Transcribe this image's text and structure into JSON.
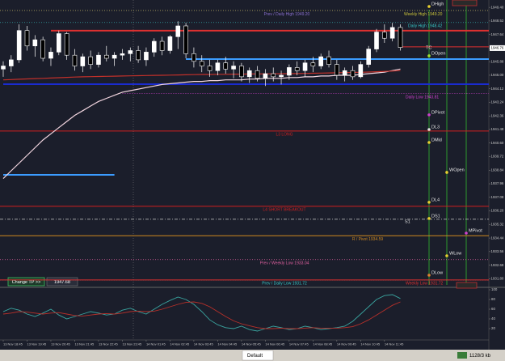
{
  "chart_data": {
    "type": "candlestick",
    "categories": [
      "13 Nov 18:45",
      null,
      null,
      "13 Nov 19:45",
      null,
      null,
      "13 Nov 20:45",
      null,
      null,
      "13 Nov 21:45",
      null,
      null,
      "13 Nov 22:45",
      null,
      null,
      "13 Nov 23:45",
      null,
      null,
      "14 Nov 01:45",
      null,
      null,
      "14 Nov 02:45",
      null,
      null,
      "14 Nov 03:45",
      null,
      null,
      "14 Nov 04:45",
      null,
      null,
      "14 Nov 05:45",
      null,
      null,
      "14 Nov 06:45",
      null,
      null,
      "14 Nov 07:45",
      null,
      null,
      "14 Nov 08:45",
      null,
      null,
      "14 Nov 09:45",
      null,
      null,
      "14 Nov 10:45",
      null,
      null,
      "14 Nov 11:45",
      null,
      null
    ],
    "open": [
      1945.4,
      1945.6,
      1946.0,
      1947.9,
      1946.9,
      1947.3,
      1946.1,
      1946.5,
      1947.7,
      1946.3,
      1945.6,
      1946.2,
      1945.7,
      1946.3,
      1946.1,
      1946.3,
      1946.4,
      1946.6,
      1946.0,
      1946.5,
      1947.2,
      1946.6,
      1947.5,
      1948.2,
      1946.4,
      1945.9,
      1945.6,
      1945.3,
      1945.8,
      1945.4,
      1945.6,
      1944.9,
      1945.3,
      1944.8,
      1945.1,
      1944.9,
      1945.0,
      1945.5,
      1945.3,
      1945.8,
      1945.6,
      1946.2,
      1945.7,
      1945.0,
      1945.3,
      1944.9,
      1945.7,
      1946.7,
      1947.8,
      1947.4,
      1948.1
    ],
    "high": [
      1945.9,
      1946.3,
      1948.3,
      1948.2,
      1947.6,
      1947.5,
      1946.8,
      1947.9,
      1947.8,
      1946.7,
      1946.4,
      1946.6,
      1946.5,
      1946.9,
      1946.5,
      1946.7,
      1946.8,
      1946.9,
      1946.8,
      1947.4,
      1947.5,
      1947.6,
      1948.5,
      1948.4,
      1946.8,
      1946.3,
      1946.0,
      1946.0,
      1946.2,
      1945.9,
      1945.8,
      1945.5,
      1945.6,
      1945.4,
      1945.5,
      1945.3,
      1945.7,
      1945.9,
      1946.0,
      1946.2,
      1946.4,
      1946.6,
      1946.0,
      1945.5,
      1945.6,
      1945.9,
      1946.9,
      1948.0,
      1948.3,
      1948.4,
      1948.3
    ],
    "low": [
      1944.9,
      1945.2,
      1945.8,
      1946.6,
      1946.2,
      1945.9,
      1945.6,
      1946.3,
      1946.0,
      1945.3,
      1945.2,
      1945.4,
      1945.5,
      1945.9,
      1945.6,
      1946.0,
      1945.9,
      1945.8,
      1945.6,
      1946.2,
      1946.3,
      1946.4,
      1946.7,
      1946.1,
      1945.5,
      1945.2,
      1944.9,
      1945.0,
      1945.1,
      1944.8,
      1944.6,
      1944.5,
      1944.6,
      1944.3,
      1944.6,
      1944.4,
      1944.7,
      1945.0,
      1944.9,
      1945.2,
      1945.4,
      1945.5,
      1944.7,
      1944.6,
      1944.7,
      1944.8,
      1945.5,
      1946.5,
      1947.1,
      1947.2,
      1946.6
    ],
    "close": [
      1945.6,
      1946.0,
      1947.9,
      1946.9,
      1947.3,
      1946.1,
      1946.5,
      1947.7,
      1946.3,
      1945.6,
      1946.2,
      1945.7,
      1946.3,
      1946.1,
      1946.3,
      1946.4,
      1946.6,
      1946.0,
      1946.5,
      1947.2,
      1946.6,
      1947.5,
      1948.2,
      1946.4,
      1945.9,
      1945.6,
      1945.3,
      1945.8,
      1945.4,
      1945.6,
      1944.9,
      1945.3,
      1944.8,
      1945.1,
      1944.9,
      1945.0,
      1945.5,
      1945.3,
      1945.8,
      1945.6,
      1946.2,
      1945.7,
      1945.0,
      1945.3,
      1944.9,
      1945.7,
      1946.7,
      1947.8,
      1947.4,
      1948.1,
      1946.8
    ],
    "bull_color": "#ffffff",
    "bear_color": "#000000",
    "wick_color": "#ffffff",
    "ylim": [
      1931.4,
      1949.88
    ],
    "yticks": [
      {
        "value": 1949.4,
        "label": "1949.40"
      },
      1948.52,
      1947.64,
      1946.76,
      1945.88,
      {
        "value": 1945,
        "label": "1945.00"
      },
      1944.12,
      1943.24,
      1942.36,
      1941.48,
      {
        "value": 1940.6,
        "label": "1940.60"
      },
      1939.72,
      1938.84,
      1937.96,
      1937.08,
      {
        "value": 1936.2,
        "label": "1936.20"
      },
      1935.32,
      1934.44,
      1933.56,
      1932.68,
      {
        "value": 1931.8,
        "label": "1931.80"
      }
    ],
    "current_price": 1946.76,
    "series": [
      {
        "color": "#f3d6e0",
        "values": [
          1938.3,
          1938.8,
          1939.3,
          1939.8,
          1940.3,
          1940.8,
          1941.2,
          1941.6,
          1942.0,
          1942.4,
          1942.7,
          1943.0,
          1943.3,
          1943.5,
          1943.7,
          1943.9,
          1944.0,
          1944.1,
          1944.2,
          1944.3,
          1944.4,
          1944.45,
          1944.5,
          1944.55,
          1944.6,
          1944.6,
          1944.65,
          1944.65,
          1944.7,
          1944.7,
          1944.7,
          1944.75,
          1944.75,
          1944.8,
          1944.8,
          1944.8,
          1944.85,
          1944.85,
          1944.9,
          1944.9,
          1944.95,
          1944.95,
          1945.0,
          1945.0,
          1945.0,
          1945.05,
          1945.1,
          1945.15,
          1945.2,
          1945.3,
          1945.4
        ]
      },
      {
        "color": "#c0302a",
        "values": [
          1944.7,
          1944.72,
          1944.74,
          1944.76,
          1944.78,
          1944.8,
          1944.82,
          1944.84,
          1944.86,
          1944.88,
          1944.9,
          1944.91,
          1944.92,
          1944.93,
          1944.94,
          1944.95,
          1944.96,
          1944.97,
          1944.98,
          1944.99,
          1945.0,
          1945.01,
          1945.02,
          1945.03,
          1945.04,
          1945.05,
          1945.05,
          1945.06,
          1945.06,
          1945.07,
          1945.07,
          1945.08,
          1945.08,
          1945.09,
          1945.09,
          1945.1,
          1945.1,
          1945.11,
          1945.12,
          1945.13,
          1945.14,
          1945.15,
          1945.16,
          1945.17,
          1945.18,
          1945.19,
          1945.21,
          1945.23,
          1945.25,
          1945.27,
          1945.3
        ]
      }
    ],
    "levels": [
      {
        "value": 1949.2,
        "color": "#8a6fd1",
        "style": "dotted",
        "label": "Prev / Daily High 1949.20"
      },
      {
        "value": 1949.2,
        "color": "#c9c23a",
        "style": "dotted",
        "label": "Weekly High 1949.20"
      },
      {
        "value": 1948.42,
        "color": "#39c6c6",
        "style": "dotted",
        "label": "Daily High 1948.42"
      },
      {
        "value": 1947.89,
        "color": "#e03030",
        "style": "thick",
        "start": 6
      },
      {
        "value": 1946.84,
        "color": "#e03030",
        "style": "solid",
        "start": 50
      },
      {
        "value": 1946.05,
        "color": "#3b9cff",
        "style": "thick",
        "start": 23
      },
      {
        "value": 1944.42,
        "color": "#1a2bd0",
        "style": "thick",
        "start": 0
      },
      {
        "value": 1943.81,
        "color": "#d040d0",
        "style": "dotted",
        "label": "Daily Low 1943.81",
        "start": 15
      },
      {
        "value": 1941.38,
        "color": "#d02020",
        "style": "solid",
        "label": "L3 LONG"
      },
      {
        "value": 1938.54,
        "color": "#3b9cff",
        "style": "thick",
        "start": 0,
        "end": 14
      },
      {
        "value": 1936.5,
        "color": "#d02020",
        "style": "solid",
        "label": "L4 SHORT BREAKOUT"
      },
      {
        "value": 1935.66,
        "color": "#cccccc",
        "style": "dashdot"
      },
      {
        "value": 1934.59,
        "color": "#d08a20",
        "style": "solid",
        "label": "R / Pivot 1934.59"
      },
      {
        "value": 1933.04,
        "color": "#e060a0",
        "style": "dotted",
        "label": "Prev / Weekly Low 1933.04"
      },
      {
        "value": 1931.72,
        "color": "#39c6c6",
        "style": "dotted",
        "label": "Prev / Daily Low 1931.72"
      },
      {
        "value": 1931.72,
        "color": "#e03030",
        "style": "solid",
        "label": "Weekly Low 1931.72"
      }
    ],
    "markers": [
      {
        "label": "DHigh",
        "value": 1949.46,
        "color": "#e8d030"
      },
      {
        "label": "TC",
        "value": 1946.63
      },
      {
        "label": "DOpen",
        "value": 1946.26,
        "color": "#a0e030"
      },
      {
        "label": "DPivot",
        "value": 1942.43,
        "color": "#d040d0"
      },
      {
        "label": "DL3",
        "value": 1941.48,
        "color": "#e0e0e0"
      },
      {
        "label": "DMid",
        "value": 1940.64,
        "color": "#e8d030"
      },
      {
        "label": "WOpen",
        "value": 1938.7,
        "color": "#e8d030"
      },
      {
        "label": "DL4",
        "value": 1936.76,
        "color": "#e8d030"
      },
      {
        "label": "DS1",
        "value": 1935.71,
        "color": "#e8d030"
      },
      {
        "label": "S1",
        "value": 1935.34
      },
      {
        "label": "MPivot",
        "value": 1934.76,
        "color": "#d040d0"
      },
      {
        "label": "WLow",
        "value": 1933.29,
        "color": "#e8d030"
      },
      {
        "label": "DLow",
        "value": 1932.03,
        "color": "#e08030"
      }
    ],
    "oscillator": {
      "ylim": [
        0,
        100
      ],
      "yticks": [
        100,
        80,
        60,
        40,
        20
      ],
      "series": [
        {
          "color": "#3aa5a0",
          "values": [
            55,
            62,
            58,
            50,
            45,
            52,
            60,
            48,
            40,
            45,
            50,
            55,
            52,
            48,
            50,
            58,
            62,
            55,
            50,
            60,
            70,
            78,
            85,
            80,
            70,
            55,
            38,
            28,
            22,
            20,
            25,
            18,
            15,
            20,
            25,
            22,
            18,
            20,
            25,
            22,
            18,
            20,
            22,
            25,
            35,
            50,
            65,
            80,
            88,
            90,
            82
          ]
        },
        {
          "color": "#b8302a",
          "values": [
            50,
            52,
            55,
            54,
            52,
            50,
            52,
            53,
            50,
            47,
            46,
            48,
            50,
            51,
            50,
            52,
            55,
            56,
            55,
            56,
            60,
            65,
            70,
            74,
            75,
            72,
            65,
            55,
            45,
            36,
            30,
            26,
            22,
            20,
            20,
            21,
            20,
            20,
            21,
            22,
            21,
            21,
            21,
            22,
            24,
            30,
            38,
            48,
            58,
            68,
            75
          ]
        }
      ]
    }
  },
  "ui": {
    "change_tp": "Change TP >>",
    "tp_value": "1947.68",
    "tab": "Default",
    "status": "1128/3 kb"
  }
}
